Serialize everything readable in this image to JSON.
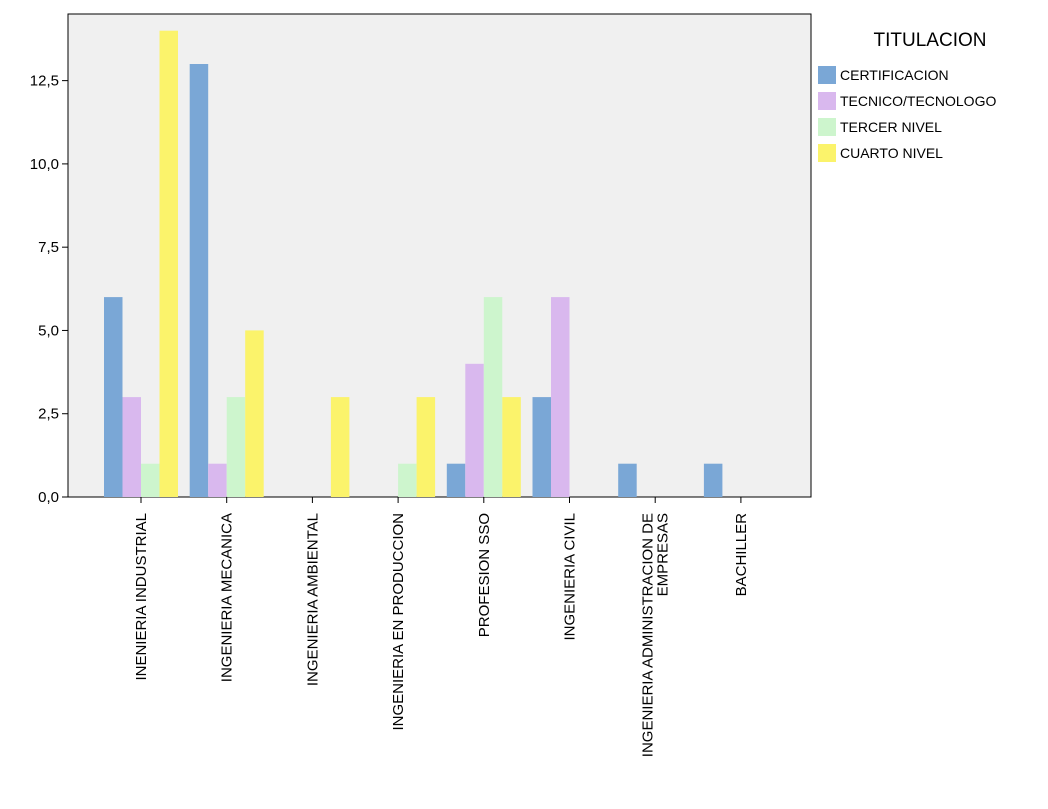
{
  "chart_data": {
    "type": "bar",
    "title": "",
    "xlabel": "",
    "ylabel": "",
    "ylim": [
      0,
      14.5
    ],
    "yticks": [
      "0,0",
      "2,5",
      "5,0",
      "7,5",
      "10,0",
      "12,5"
    ],
    "ytick_values": [
      0,
      2.5,
      5,
      7.5,
      10,
      12.5
    ],
    "grid": false,
    "categories": [
      [
        "INENIERIA INDUSTRIAL"
      ],
      [
        "INGENIERIA MECANICA"
      ],
      [
        "INGENIERIA AMBIENTAL"
      ],
      [
        "INGENIERIA EN PRODUCCION"
      ],
      [
        "PROFESION SSO"
      ],
      [
        "INGENIERIA CIVIL"
      ],
      [
        "INGENIERIA ADMINISTRACION DE",
        "EMPRESAS"
      ],
      [
        "BACHILLER"
      ]
    ],
    "legend": {
      "title": "TITULACION",
      "placement": "right"
    },
    "series": [
      {
        "name": "CERTIFICACION",
        "color": "#7aa7d6",
        "values": [
          6,
          13,
          0,
          0,
          1,
          3,
          1,
          1
        ]
      },
      {
        "name": "TECNICO/TECNOLOGO",
        "color": "#d9b8ee",
        "values": [
          3,
          1,
          0,
          0,
          4,
          6,
          0,
          0
        ]
      },
      {
        "name": "TERCER NIVEL",
        "color": "#cdf5cd",
        "values": [
          1,
          3,
          0,
          1,
          6,
          0,
          0,
          0
        ]
      },
      {
        "name": "CUARTO NIVEL",
        "color": "#fbf36b",
        "values": [
          14,
          5,
          3,
          3,
          3,
          0,
          0,
          0
        ]
      }
    ],
    "plot_background": "#f0f0f0"
  }
}
